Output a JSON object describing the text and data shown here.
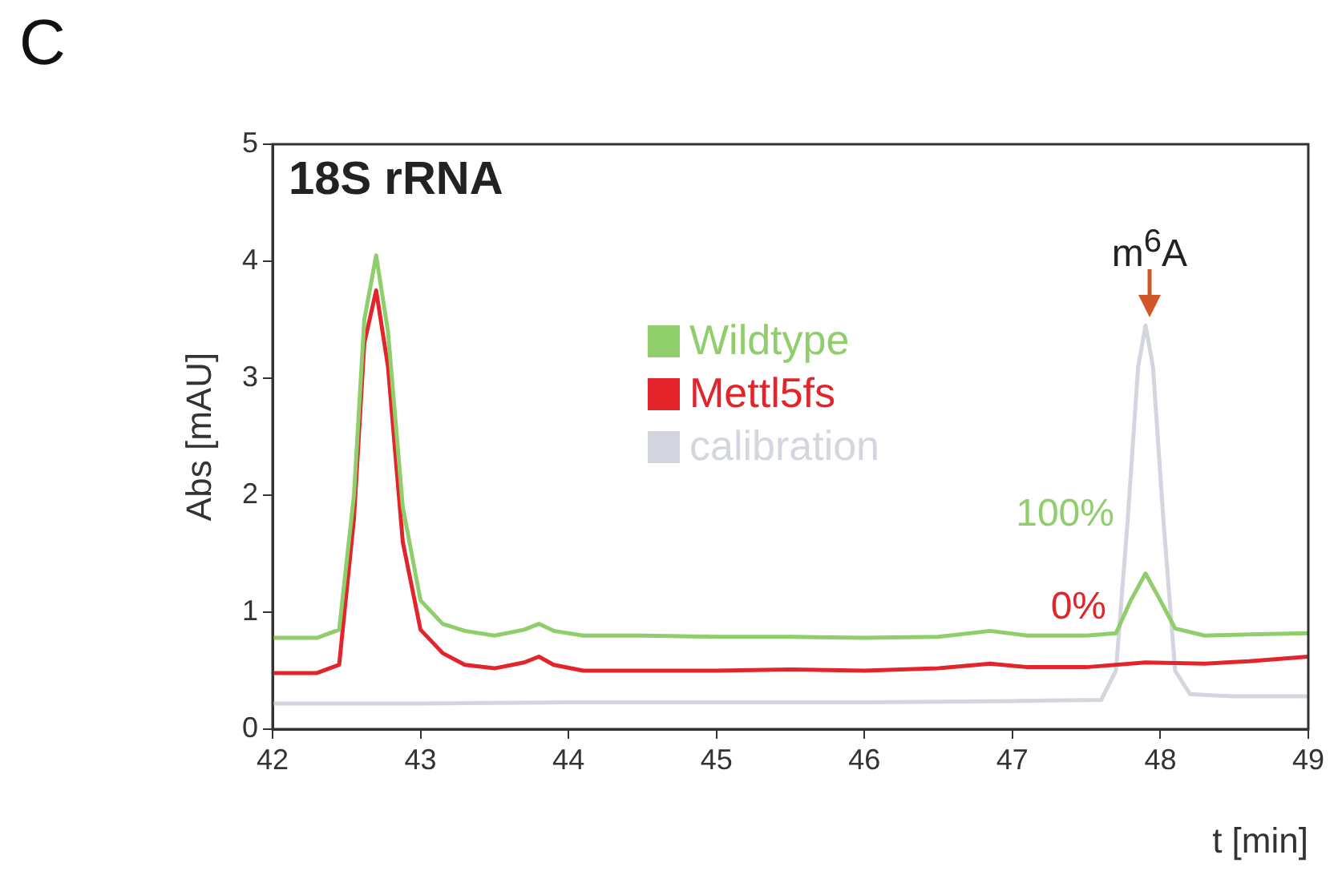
{
  "chart_data": {
    "type": "line",
    "title": "18S rRNA",
    "xlabel": "t [min]",
    "ylabel": "Abs [mAU]",
    "xlim": [
      42,
      49
    ],
    "xticks": [
      42,
      43,
      44,
      45,
      46,
      47,
      48,
      49
    ],
    "ylim": [
      0,
      5
    ],
    "yticks": [
      0,
      1,
      2,
      3,
      4,
      5
    ],
    "grid": false,
    "legend": "top",
    "marker": "none",
    "line_style": "solid",
    "annotations": [
      "C",
      "m$^{6}$A",
      "100%",
      "0%"
    ],
    "series": [
      {
        "name": "Wildtype",
        "color": "#8fce6b",
        "x": [
          42,
          42.3,
          42.45,
          42.55,
          42.62,
          42.7,
          42.78,
          42.88,
          43.0,
          43.15,
          43.3,
          43.5,
          43.7,
          43.8,
          43.9,
          44.1,
          44.5,
          45,
          45.5,
          46,
          46.5,
          46.85,
          47.1,
          47.5,
          47.7,
          47.8,
          47.9,
          48.0,
          48.1,
          48.3,
          48.6,
          49
        ],
        "values": [
          0.78,
          0.78,
          0.85,
          2.0,
          3.5,
          4.05,
          3.4,
          1.9,
          1.1,
          0.9,
          0.84,
          0.8,
          0.85,
          0.9,
          0.84,
          0.8,
          0.8,
          0.79,
          0.79,
          0.78,
          0.79,
          0.84,
          0.8,
          0.8,
          0.82,
          1.1,
          1.33,
          1.1,
          0.86,
          0.8,
          0.81,
          0.82
        ]
      },
      {
        "name": "Mettl5fs",
        "color": "#e3242b",
        "x": [
          42,
          42.3,
          42.45,
          42.55,
          42.62,
          42.7,
          42.78,
          42.88,
          43.0,
          43.15,
          43.3,
          43.5,
          43.7,
          43.8,
          43.9,
          44.1,
          44.5,
          45,
          45.5,
          46,
          46.5,
          46.85,
          47.1,
          47.5,
          47.9,
          48.3,
          48.6,
          49
        ],
        "values": [
          0.48,
          0.48,
          0.55,
          1.8,
          3.3,
          3.75,
          3.1,
          1.6,
          0.85,
          0.65,
          0.55,
          0.52,
          0.57,
          0.62,
          0.55,
          0.5,
          0.5,
          0.5,
          0.51,
          0.5,
          0.52,
          0.56,
          0.53,
          0.53,
          0.57,
          0.56,
          0.58,
          0.62
        ]
      },
      {
        "name": "calibration",
        "color": "#d3d6df",
        "x": [
          42,
          43,
          44,
          45,
          46,
          47,
          47.6,
          47.7,
          47.78,
          47.85,
          47.9,
          47.95,
          48.02,
          48.1,
          48.2,
          48.5,
          49
        ],
        "values": [
          0.22,
          0.22,
          0.23,
          0.23,
          0.23,
          0.24,
          0.25,
          0.5,
          1.8,
          3.1,
          3.45,
          3.1,
          1.8,
          0.5,
          0.3,
          0.28,
          0.28
        ]
      }
    ]
  }
}
